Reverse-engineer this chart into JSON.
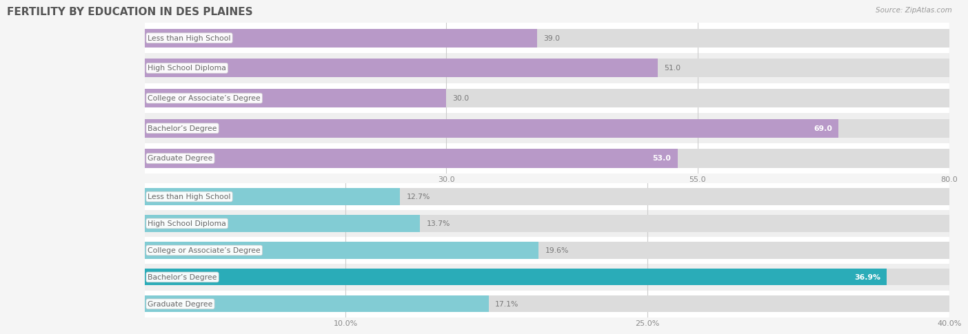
{
  "title": "FERTILITY BY EDUCATION IN DES PLAINES",
  "source": "Source: ZipAtlas.com",
  "top_chart": {
    "categories": [
      "Less than High School",
      "High School Diploma",
      "College or Associate’s Degree",
      "Bachelor’s Degree",
      "Graduate Degree"
    ],
    "values": [
      39.0,
      51.0,
      30.0,
      69.0,
      53.0
    ],
    "bar_color": "#b899c8",
    "xlim": [
      0,
      80.0
    ],
    "xticks": [
      30.0,
      55.0,
      80.0
    ],
    "xtick_labels": [
      "30.0",
      "55.0",
      "80.0"
    ]
  },
  "bottom_chart": {
    "categories": [
      "Less than High School",
      "High School Diploma",
      "College or Associate’s Degree",
      "Bachelor’s Degree",
      "Graduate Degree"
    ],
    "values": [
      12.7,
      13.7,
      19.6,
      36.9,
      17.1
    ],
    "bar_colors": [
      "#82ccd4",
      "#82ccd4",
      "#82ccd4",
      "#2aacb8",
      "#82ccd4"
    ],
    "xlim": [
      0,
      40.0
    ],
    "xticks": [
      10.0,
      25.0,
      40.0
    ],
    "xtick_labels": [
      "10.0%",
      "25.0%",
      "40.0%"
    ]
  },
  "background_color": "#f5f5f5",
  "row_colors": [
    "#ffffff",
    "#efefef"
  ],
  "bar_bg_color": "#dcdcdc",
  "title_color": "#555555",
  "source_color": "#999999",
  "label_box_color": "#ffffff",
  "label_box_edge": "#cccccc",
  "label_text_color": "#666666",
  "value_color_inside": "#ffffff",
  "value_color_outside": "#777777",
  "grid_color": "#cccccc",
  "title_fontsize": 11,
  "label_fontsize": 7.8,
  "value_fontsize": 7.8,
  "tick_fontsize": 8
}
